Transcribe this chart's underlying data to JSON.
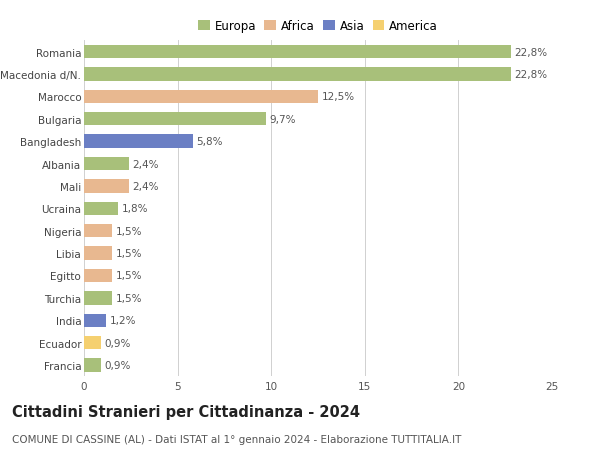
{
  "countries": [
    "Romania",
    "Macedonia d/N.",
    "Marocco",
    "Bulgaria",
    "Bangladesh",
    "Albania",
    "Mali",
    "Ucraina",
    "Nigeria",
    "Libia",
    "Egitto",
    "Turchia",
    "India",
    "Ecuador",
    "Francia"
  ],
  "values": [
    22.8,
    22.8,
    12.5,
    9.7,
    5.8,
    2.4,
    2.4,
    1.8,
    1.5,
    1.5,
    1.5,
    1.5,
    1.2,
    0.9,
    0.9
  ],
  "labels": [
    "22,8%",
    "22,8%",
    "12,5%",
    "9,7%",
    "5,8%",
    "2,4%",
    "2,4%",
    "1,8%",
    "1,5%",
    "1,5%",
    "1,5%",
    "1,5%",
    "1,2%",
    "0,9%",
    "0,9%"
  ],
  "continents": [
    "Europa",
    "Europa",
    "Africa",
    "Europa",
    "Asia",
    "Europa",
    "Africa",
    "Europa",
    "Africa",
    "Africa",
    "Africa",
    "Europa",
    "Asia",
    "America",
    "Europa"
  ],
  "colors": {
    "Europa": "#a8c07a",
    "Africa": "#e8b890",
    "Asia": "#6b7fc4",
    "America": "#f5d070"
  },
  "legend_order": [
    "Europa",
    "Africa",
    "Asia",
    "America"
  ],
  "title": "Cittadini Stranieri per Cittadinanza - 2024",
  "subtitle": "COMUNE DI CASSINE (AL) - Dati ISTAT al 1° gennaio 2024 - Elaborazione TUTTITALIA.IT",
  "xlim": [
    0,
    25
  ],
  "xticks": [
    0,
    5,
    10,
    15,
    20,
    25
  ],
  "bg_color": "#ffffff",
  "grid_color": "#d0d0d0",
  "bar_height": 0.6,
  "title_fontsize": 10.5,
  "subtitle_fontsize": 7.5,
  "label_fontsize": 7.5,
  "tick_fontsize": 7.5,
  "legend_fontsize": 8.5
}
